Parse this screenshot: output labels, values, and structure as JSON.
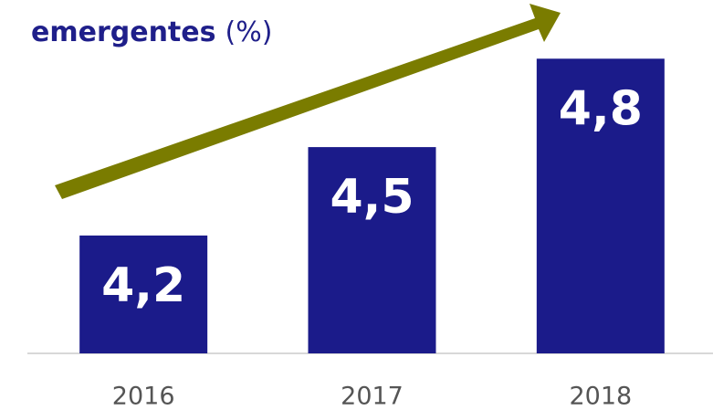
{
  "chart_data": {
    "type": "bar",
    "title": "emergentes",
    "unit": "(%)",
    "categories": [
      "2016",
      "2017",
      "2018"
    ],
    "values": [
      4.2,
      4.5,
      4.8
    ],
    "value_labels": [
      "4,2",
      "4,5",
      "4,8"
    ],
    "color": "#1b1b8a",
    "ylim": [
      3.8,
      4.9
    ]
  }
}
